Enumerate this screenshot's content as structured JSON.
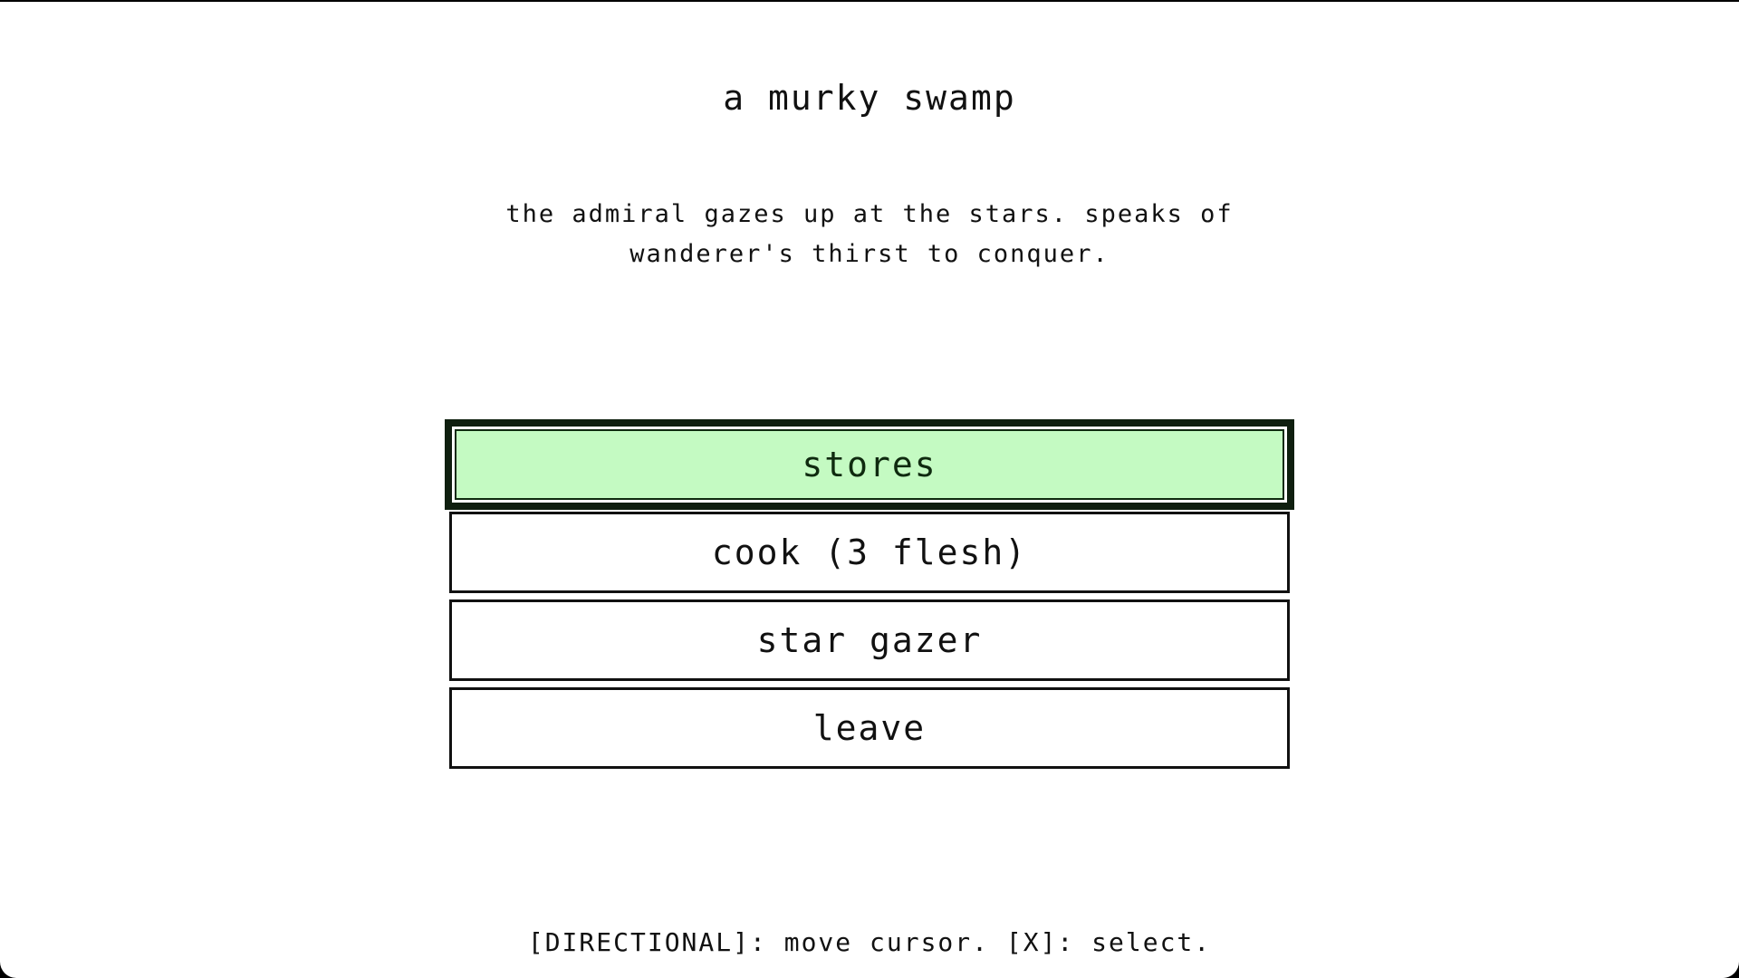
{
  "location": "a murky swamp",
  "description": "the admiral gazes up at the stars. speaks of wanderer's thirst to conquer.",
  "menu": {
    "selected_index": 0,
    "options": [
      {
        "label": "stores"
      },
      {
        "label": "cook (3 flesh)"
      },
      {
        "label": "star gazer"
      },
      {
        "label": "leave"
      }
    ]
  },
  "controls_hint": "[DIRECTIONAL]: move cursor. [X]: select.",
  "colors": {
    "selected_bg": "#c4fac2",
    "border": "#111111"
  }
}
